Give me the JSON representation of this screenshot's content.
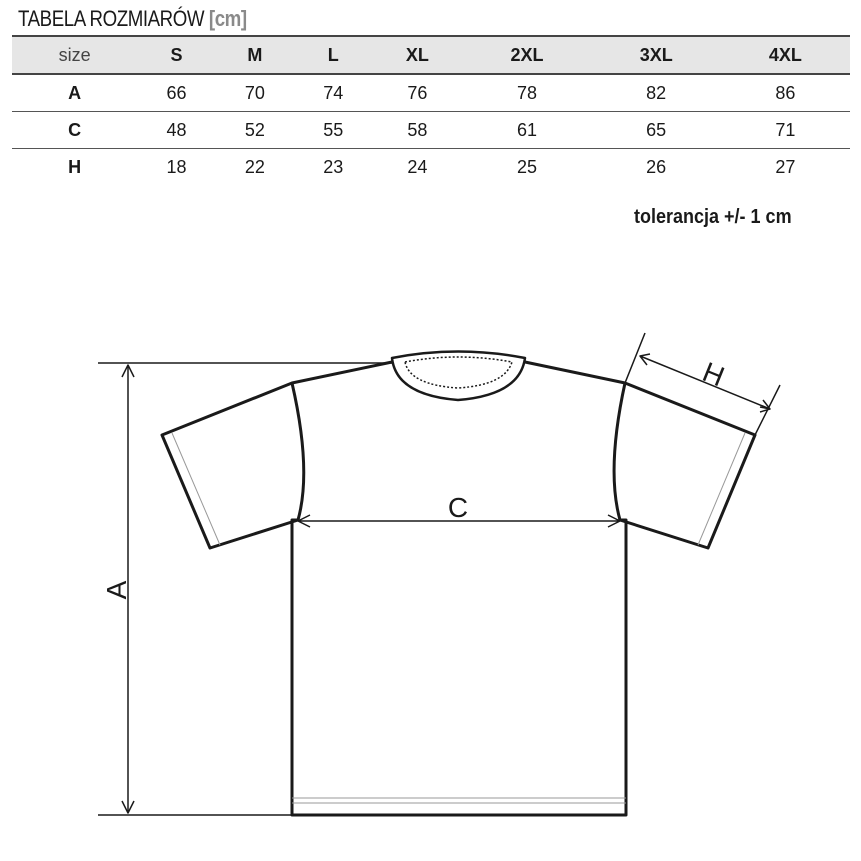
{
  "title": "TABELA ROZMIARÓW",
  "unit": "[cm]",
  "table": {
    "headers": [
      "size",
      "S",
      "M",
      "L",
      "XL",
      "2XL",
      "3XL",
      "4XL"
    ],
    "rows": [
      {
        "label": "A",
        "values": [
          "66",
          "70",
          "74",
          "76",
          "78",
          "82",
          "86"
        ]
      },
      {
        "label": "C",
        "values": [
          "48",
          "52",
          "55",
          "58",
          "61",
          "65",
          "71"
        ]
      },
      {
        "label": "H",
        "values": [
          "18",
          "22",
          "23",
          "24",
          "25",
          "26",
          "27"
        ]
      }
    ]
  },
  "tolerance": "tolerancja +/- 1 cm",
  "diagram": {
    "label_a": "A",
    "label_c": "C",
    "label_h": "H"
  }
}
